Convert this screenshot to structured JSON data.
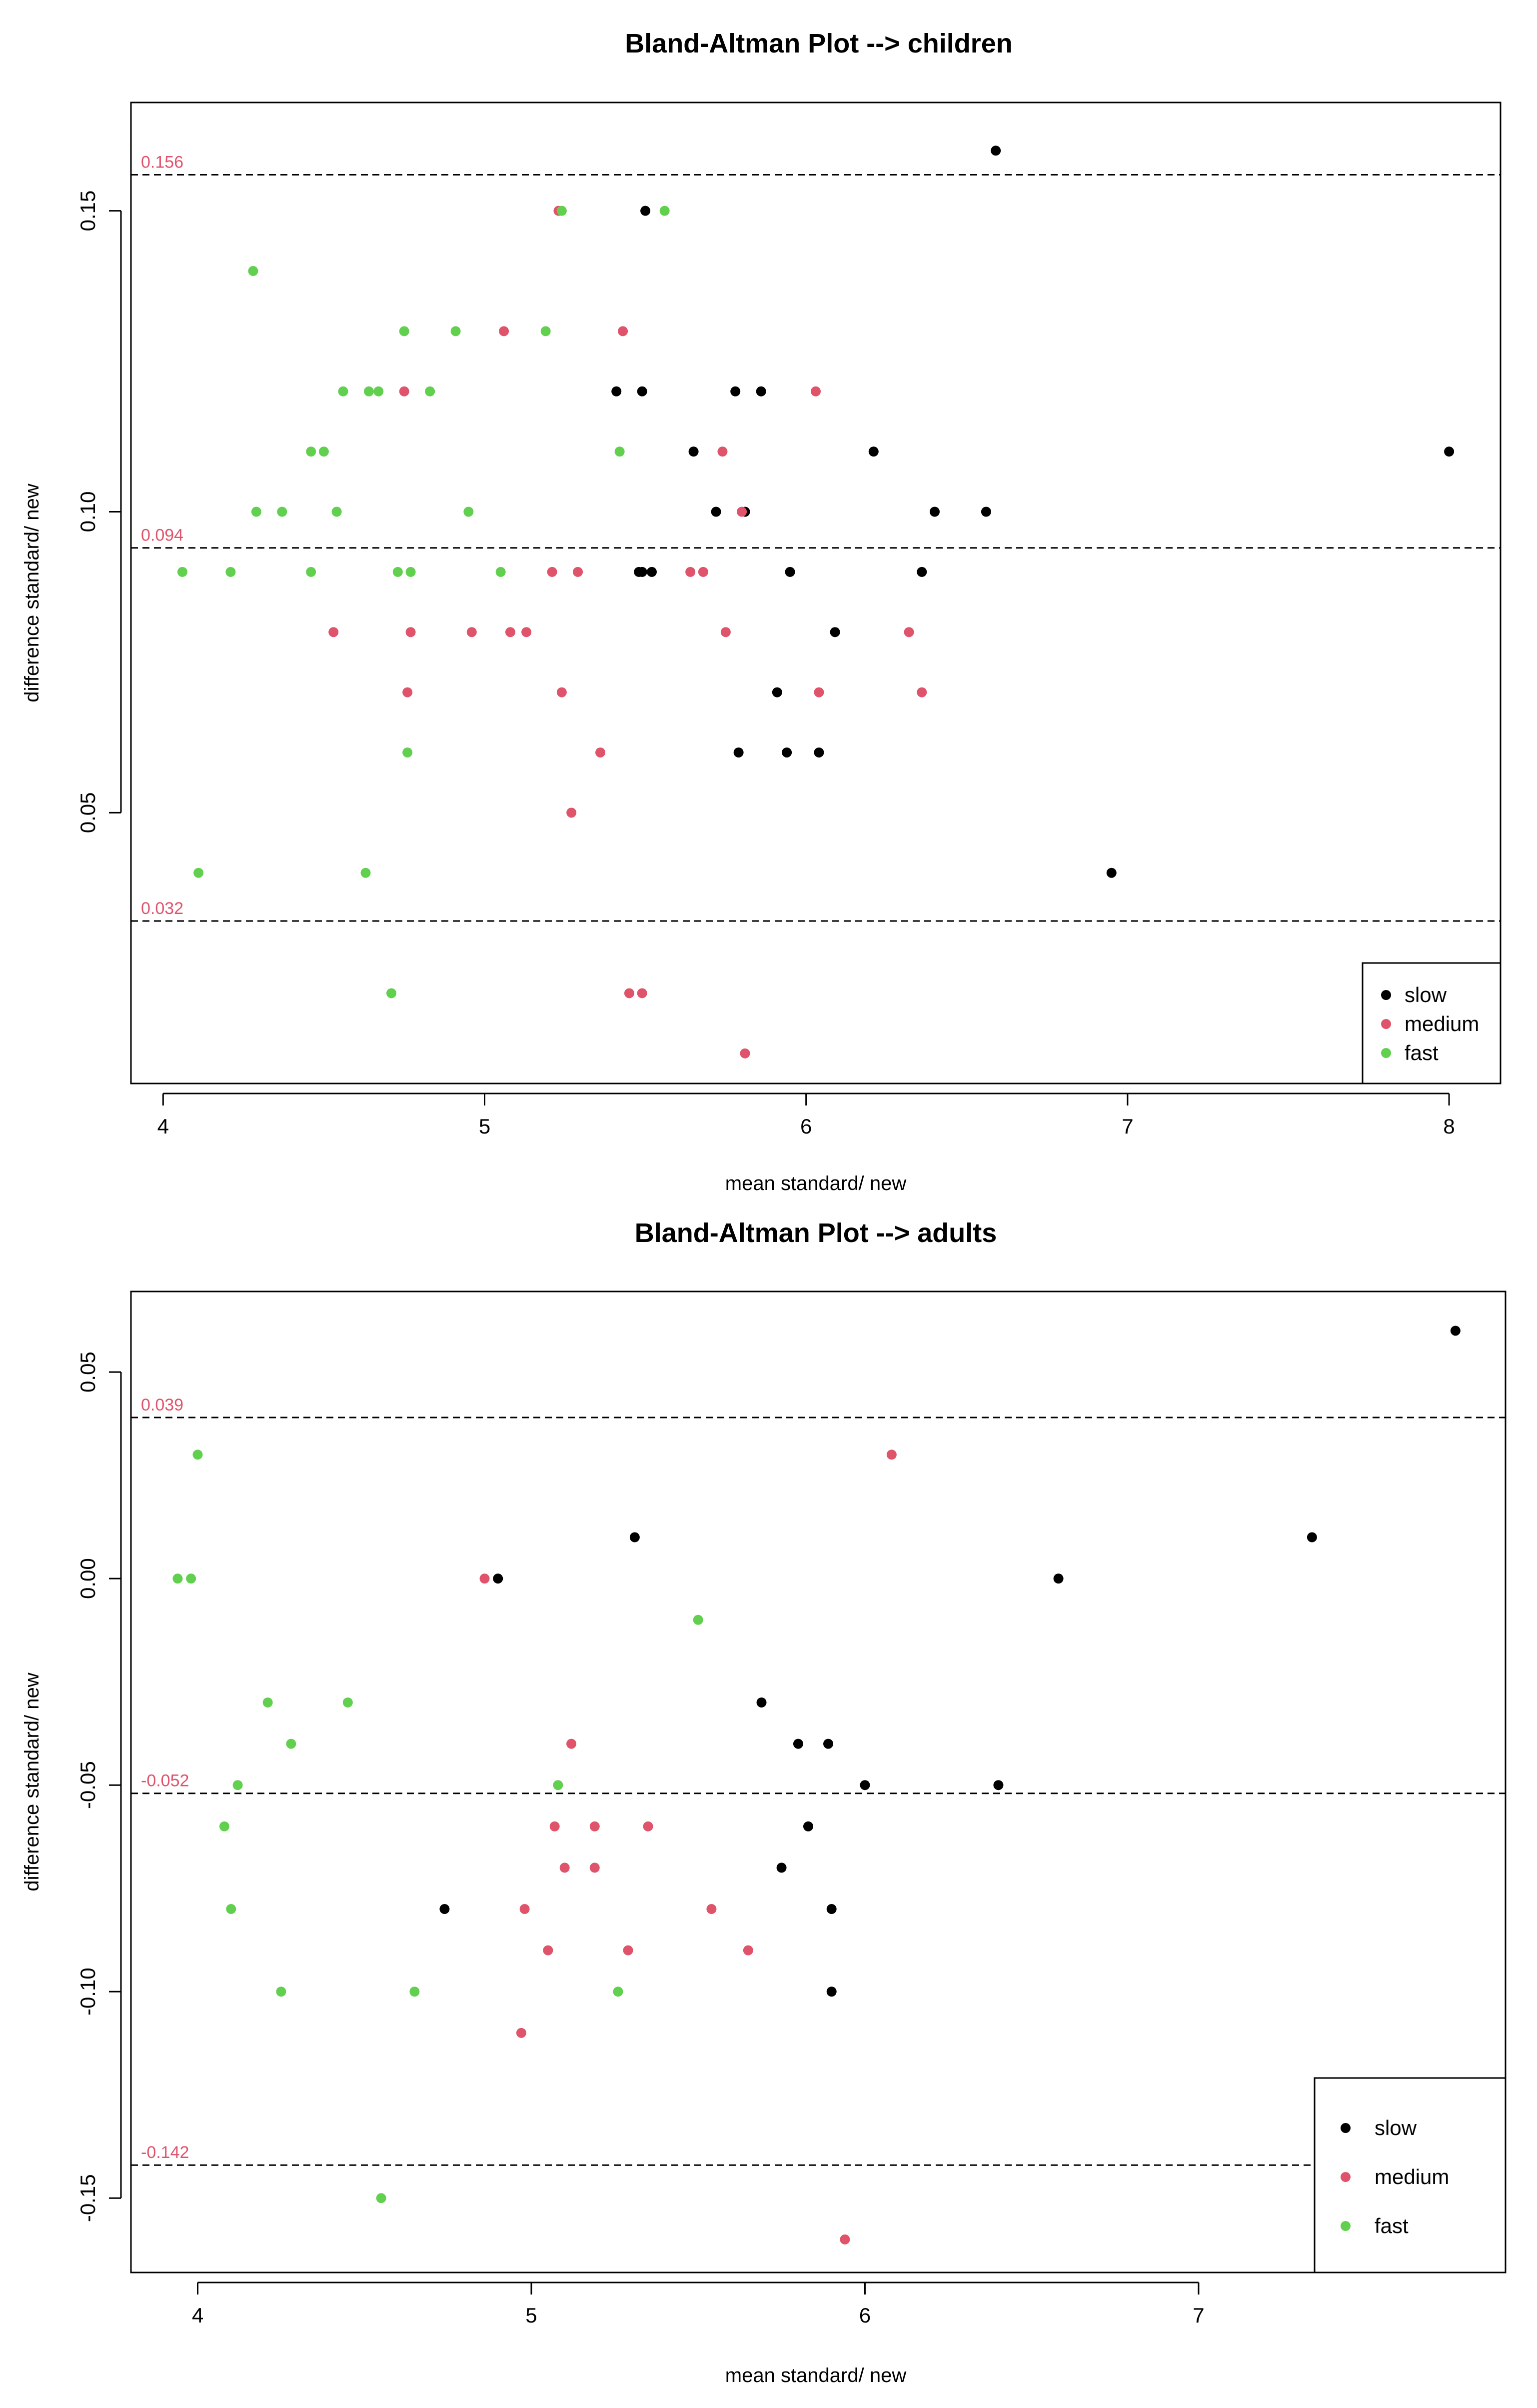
{
  "chart_data": [
    {
      "type": "scatter",
      "title": "Bland-Altman Plot --> children",
      "xlabel": "mean standard/ new",
      "ylabel": "difference standard/ new",
      "xlim": [
        3.9,
        8.16
      ],
      "ylim": [
        0.005,
        0.168
      ],
      "xticks": [
        4,
        5,
        6,
        7,
        8
      ],
      "xtick_labels": [
        "4",
        "5",
        "6",
        "7",
        "8"
      ],
      "yticks": [
        0.05,
        0.1,
        0.15
      ],
      "ytick_labels": [
        "0.05",
        "0.10",
        "0.15"
      ],
      "reference_lines": [
        {
          "value": 0.156,
          "label": "0.156"
        },
        {
          "value": 0.094,
          "label": "0.094"
        },
        {
          "value": 0.032,
          "label": "0.032"
        }
      ],
      "legend": {
        "position": "bottom-right",
        "entries": [
          "slow",
          "medium",
          "fast"
        ]
      },
      "series": [
        {
          "name": "slow",
          "color": "#000000",
          "points": [
            [
              6.59,
              0.16
            ],
            [
              5.5,
              0.15
            ],
            [
              5.41,
              0.12
            ],
            [
              5.49,
              0.12
            ],
            [
              5.78,
              0.12
            ],
            [
              5.86,
              0.12
            ],
            [
              5.65,
              0.11
            ],
            [
              6.21,
              0.11
            ],
            [
              8.0,
              0.11
            ],
            [
              5.72,
              0.1
            ],
            [
              5.81,
              0.1
            ],
            [
              6.4,
              0.1
            ],
            [
              6.56,
              0.1
            ],
            [
              5.48,
              0.09
            ],
            [
              5.49,
              0.09
            ],
            [
              5.52,
              0.09
            ],
            [
              5.95,
              0.09
            ],
            [
              6.36,
              0.09
            ],
            [
              6.09,
              0.08
            ],
            [
              5.91,
              0.07
            ],
            [
              5.79,
              0.06
            ],
            [
              5.94,
              0.06
            ],
            [
              6.04,
              0.06
            ],
            [
              6.95,
              0.04
            ]
          ]
        },
        {
          "name": "medium",
          "color": "#df536b",
          "points": [
            [
              5.23,
              0.15
            ],
            [
              5.06,
              0.13
            ],
            [
              5.43,
              0.13
            ],
            [
              4.75,
              0.12
            ],
            [
              6.03,
              0.12
            ],
            [
              5.74,
              0.11
            ],
            [
              5.8,
              0.1
            ],
            [
              5.21,
              0.09
            ],
            [
              5.29,
              0.09
            ],
            [
              5.64,
              0.09
            ],
            [
              5.68,
              0.09
            ],
            [
              4.53,
              0.08
            ],
            [
              4.77,
              0.08
            ],
            [
              4.96,
              0.08
            ],
            [
              5.08,
              0.08
            ],
            [
              5.13,
              0.08
            ],
            [
              5.75,
              0.08
            ],
            [
              6.32,
              0.08
            ],
            [
              4.76,
              0.07
            ],
            [
              5.24,
              0.07
            ],
            [
              6.04,
              0.07
            ],
            [
              6.36,
              0.07
            ],
            [
              5.36,
              0.06
            ],
            [
              5.27,
              0.05
            ],
            [
              5.45,
              0.02
            ],
            [
              5.49,
              0.02
            ],
            [
              5.81,
              0.01
            ]
          ]
        },
        {
          "name": "fast",
          "color": "#61d04f",
          "points": [
            [
              5.24,
              0.15
            ],
            [
              5.56,
              0.15
            ],
            [
              4.28,
              0.14
            ],
            [
              4.75,
              0.13
            ],
            [
              4.91,
              0.13
            ],
            [
              5.19,
              0.13
            ],
            [
              4.56,
              0.12
            ],
            [
              4.64,
              0.12
            ],
            [
              4.67,
              0.12
            ],
            [
              4.83,
              0.12
            ],
            [
              4.46,
              0.11
            ],
            [
              4.5,
              0.11
            ],
            [
              5.42,
              0.11
            ],
            [
              4.29,
              0.1
            ],
            [
              4.37,
              0.1
            ],
            [
              4.54,
              0.1
            ],
            [
              4.95,
              0.1
            ],
            [
              4.06,
              0.09
            ],
            [
              4.21,
              0.09
            ],
            [
              4.46,
              0.09
            ],
            [
              4.73,
              0.09
            ],
            [
              4.77,
              0.09
            ],
            [
              5.05,
              0.09
            ],
            [
              4.76,
              0.06
            ],
            [
              4.11,
              0.04
            ],
            [
              4.63,
              0.04
            ],
            [
              4.71,
              0.02
            ]
          ]
        }
      ]
    },
    {
      "type": "scatter",
      "title": "Bland-Altman Plot --> adults",
      "xlabel": "mean standard/ new",
      "ylabel": "difference standard/ new",
      "xlim": [
        3.8,
        7.92
      ],
      "ylim": [
        -0.168,
        0.0695
      ],
      "xticks": [
        4,
        5,
        6,
        7
      ],
      "xtick_labels": [
        "4",
        "5",
        "6",
        "7"
      ],
      "yticks": [
        -0.15,
        -0.1,
        -0.05,
        0.0,
        0.05
      ],
      "ytick_labels": [
        "-0.15",
        "-0.10",
        "-0.05",
        "0.00",
        "0.05"
      ],
      "reference_lines": [
        {
          "value": 0.039,
          "label": "0.039"
        },
        {
          "value": -0.052,
          "label": "-0.052"
        },
        {
          "value": -0.142,
          "label": "-0.142"
        }
      ],
      "legend": {
        "position": "bottom-right",
        "entries": [
          "slow",
          "medium",
          "fast"
        ]
      },
      "series": [
        {
          "name": "slow",
          "color": "#000000",
          "points": [
            [
              7.77,
              0.06
            ],
            [
              5.31,
              0.01
            ],
            [
              7.34,
              0.01
            ],
            [
              4.9,
              0.0
            ],
            [
              6.58,
              0.0
            ],
            [
              5.69,
              -0.03
            ],
            [
              5.8,
              -0.04
            ],
            [
              5.89,
              -0.04
            ],
            [
              6.0,
              -0.05
            ],
            [
              6.4,
              -0.05
            ],
            [
              5.83,
              -0.06
            ],
            [
              5.75,
              -0.07
            ],
            [
              4.74,
              -0.08
            ],
            [
              5.9,
              -0.08
            ],
            [
              5.9,
              -0.1
            ]
          ]
        },
        {
          "name": "medium",
          "color": "#df536b",
          "points": [
            [
              6.08,
              0.03
            ],
            [
              4.86,
              0.0
            ],
            [
              5.12,
              -0.04
            ],
            [
              5.07,
              -0.06
            ],
            [
              5.19,
              -0.06
            ],
            [
              5.35,
              -0.06
            ],
            [
              5.1,
              -0.07
            ],
            [
              5.19,
              -0.07
            ],
            [
              4.98,
              -0.08
            ],
            [
              5.54,
              -0.08
            ],
            [
              5.05,
              -0.09
            ],
            [
              5.29,
              -0.09
            ],
            [
              5.65,
              -0.09
            ],
            [
              4.97,
              -0.11
            ],
            [
              5.94,
              -0.16
            ]
          ]
        },
        {
          "name": "fast",
          "color": "#61d04f",
          "points": [
            [
              4.0,
              0.03
            ],
            [
              3.94,
              0.0
            ],
            [
              3.98,
              0.0
            ],
            [
              5.5,
              -0.01
            ],
            [
              4.21,
              -0.03
            ],
            [
              4.45,
              -0.03
            ],
            [
              4.28,
              -0.04
            ],
            [
              4.12,
              -0.05
            ],
            [
              5.08,
              -0.05
            ],
            [
              4.08,
              -0.06
            ],
            [
              4.1,
              -0.08
            ],
            [
              4.25,
              -0.1
            ],
            [
              4.65,
              -0.1
            ],
            [
              5.26,
              -0.1
            ],
            [
              4.55,
              -0.15
            ]
          ]
        }
      ]
    }
  ]
}
